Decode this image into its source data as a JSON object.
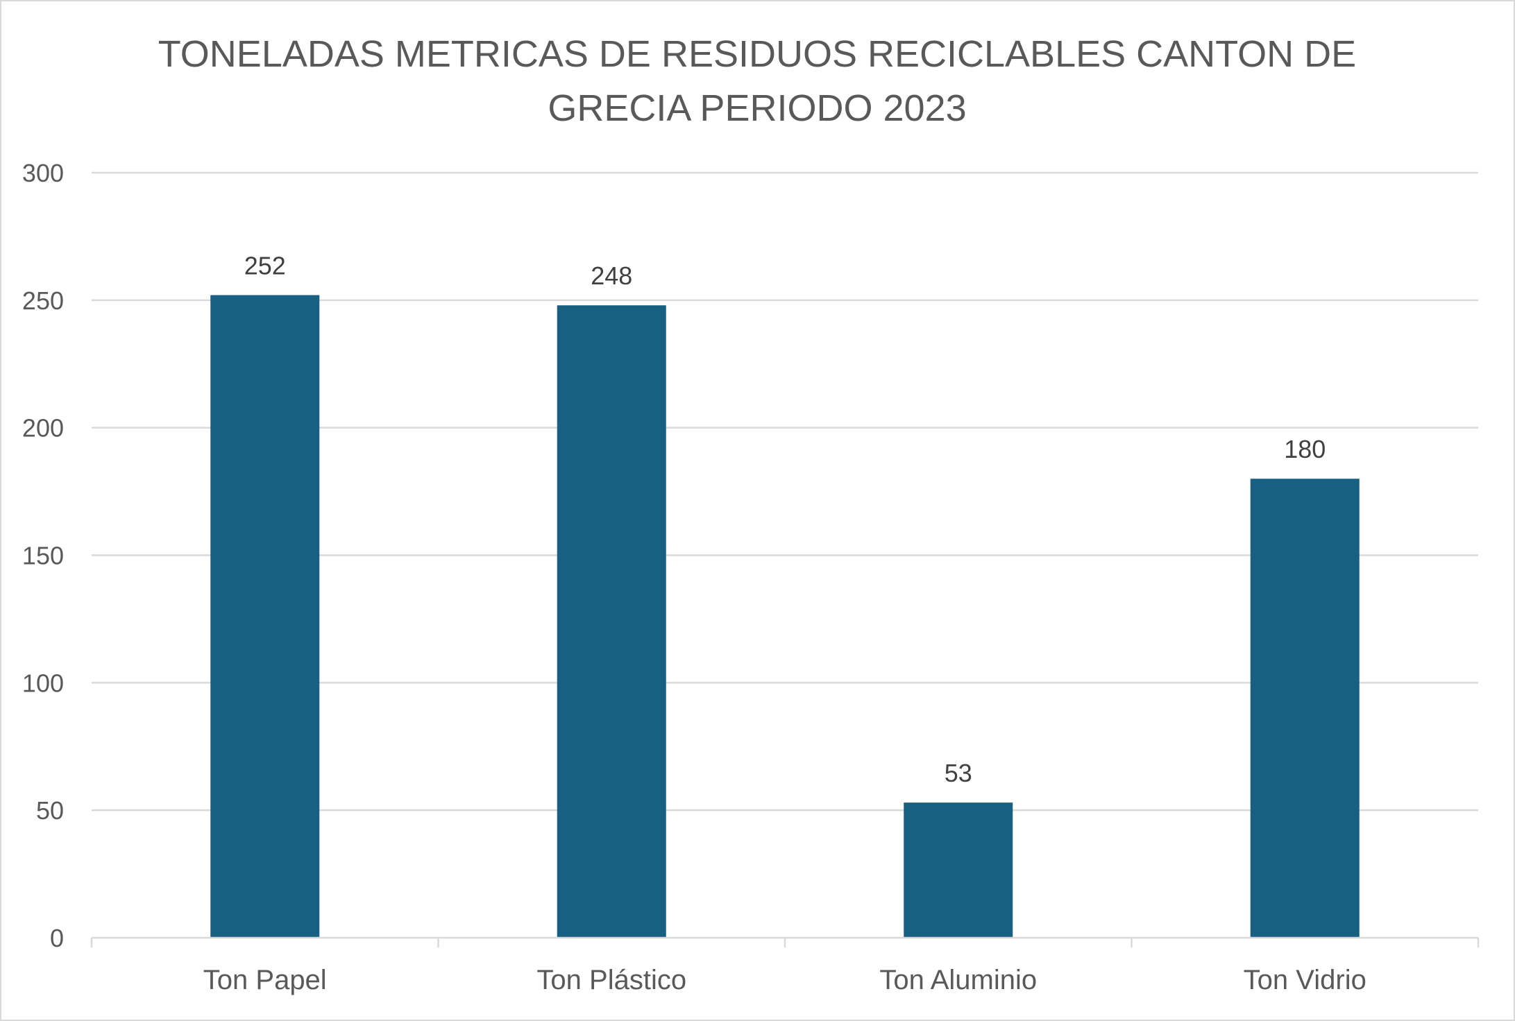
{
  "chart_data": {
    "type": "bar",
    "title_lines": [
      "TONELADAS METRICAS DE RESIDUOS RECICLABLES CANTON DE",
      "GRECIA PERIODO 2023"
    ],
    "categories": [
      "Ton Papel",
      "Ton Plástico",
      "Ton Aluminio",
      "Ton Vidrio"
    ],
    "values": [
      252,
      248,
      53,
      180
    ],
    "data_labels": [
      "252",
      "248",
      "53",
      "180"
    ],
    "y_ticks": [
      "0",
      "50",
      "100",
      "150",
      "200",
      "250",
      "300"
    ],
    "ylim": [
      0,
      300
    ],
    "xlabel": "",
    "ylabel": "",
    "grid": true,
    "legend": "none",
    "colors": {
      "bar": "#176081",
      "grid": "#d9d9d9",
      "text": "#595959",
      "data_label": "#404040"
    }
  }
}
